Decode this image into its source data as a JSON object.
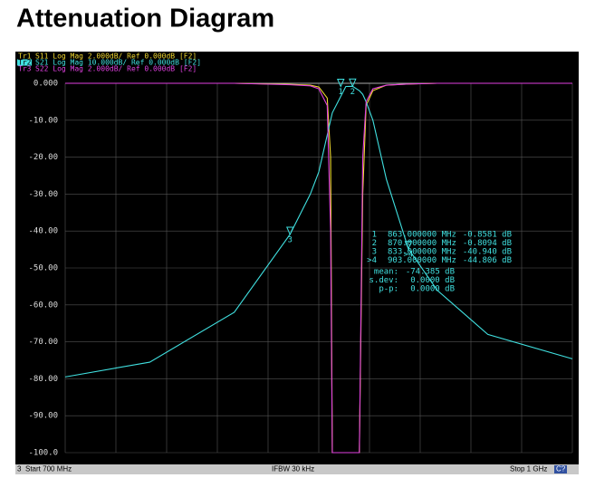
{
  "title": "Attenuation Diagram",
  "chart_data": {
    "type": "line",
    "x": [
      700,
      750,
      800,
      833,
      845,
      850,
      855,
      857,
      858,
      866,
      870,
      874,
      876,
      878,
      882,
      890,
      903,
      920,
      950,
      1000
    ],
    "xlim": [
      700,
      1000
    ],
    "xticks": [
      700,
      730,
      760,
      790,
      820,
      850,
      880,
      910,
      940,
      970,
      1000
    ],
    "ylim": [
      -100,
      0
    ],
    "yticks": [
      {
        "value": 0,
        "label": "0.000"
      },
      {
        "value": -10,
        "label": "-10.00"
      },
      {
        "value": -20,
        "label": "-20.00"
      },
      {
        "value": -30,
        "label": "-30.00"
      },
      {
        "value": -40,
        "label": "-40.00"
      },
      {
        "value": -50,
        "label": "-50.00"
      },
      {
        "value": -60,
        "label": "-60.00"
      },
      {
        "value": -70,
        "label": "-70.00"
      },
      {
        "value": -80,
        "label": "-80.00"
      },
      {
        "value": -90,
        "label": "-90.00"
      },
      {
        "value": -100,
        "label": "-100.0"
      }
    ],
    "grid": true,
    "series": [
      {
        "name": "Tr1",
        "label": "S11 Log Mag 2.000dB/ Ref 0.000dB [F2]",
        "color": "#f0d830",
        "values": [
          0,
          0,
          0,
          -0.3,
          -0.5,
          -1,
          -4,
          -20,
          -100,
          -100,
          -100,
          -100,
          -30,
          -6,
          -2,
          -0.5,
          -0.2,
          0,
          0,
          0
        ]
      },
      {
        "name": "Tr2",
        "label": "S21 Log Mag 10.000dB/ Ref 0.000dB [F2]",
        "color": "#40e0e0",
        "values": [
          -79.5,
          -75.5,
          -62,
          -40.9,
          -30,
          -24,
          -14,
          -10,
          -8,
          -0.86,
          -0.81,
          -2,
          -3,
          -5,
          -10,
          -26,
          -44.8,
          -56,
          -68,
          -74.6
        ]
      },
      {
        "name": "Tr3",
        "label": "S22 Log Mag 2.000dB/ Ref 0.000dB [F2]",
        "color": "#e040e0",
        "values": [
          0,
          0,
          0,
          -0.4,
          -0.7,
          -1.5,
          -6,
          -40,
          -100,
          -100,
          -100,
          -100,
          -20,
          -5,
          -1.5,
          -0.5,
          -0.2,
          0,
          0,
          0
        ]
      }
    ],
    "markers": [
      {
        "label": "1",
        "x": 863,
        "y": -0.8581,
        "freq": "863.000000 MHz",
        "reading": "-0.8581 dB"
      },
      {
        "label": "2",
        "x": 870,
        "y": -0.8094,
        "freq": "870.000000 MHz",
        "reading": "-0.8094 dB"
      },
      {
        "label": "3",
        "x": 833,
        "y": -40.94,
        "freq": "833.000000 MHz",
        "reading": "-40.940 dB"
      },
      {
        "label": ">4",
        "x": 903,
        "y": -44.806,
        "freq": "903.000000 MHz",
        "reading": "-44.806 dB"
      }
    ],
    "stats": [
      {
        "label": "mean:",
        "value": "-74.385 dB"
      },
      {
        "label": "s.dev:",
        "value": "0.0000 dB"
      },
      {
        "label": "p-p:",
        "value": "0.0000 dB"
      }
    ]
  },
  "status": {
    "channel": "3",
    "start": "Start 700 MHz",
    "ifbw": "IFBW 30 kHz",
    "stop": "Stop 1 GHz",
    "cal": "C?"
  }
}
